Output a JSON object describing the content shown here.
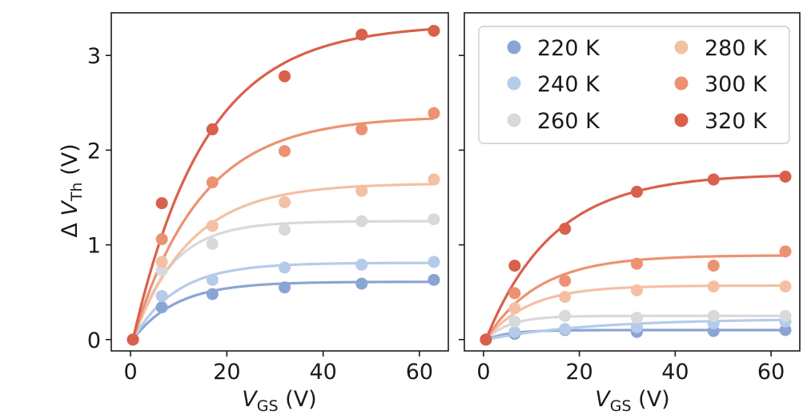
{
  "chart_data": [
    {
      "type": "scatter",
      "panel": "left",
      "xlabel": "V_GS (V)",
      "xlabel_main": "V",
      "xlabel_sub": "GS",
      "xlabel_unit": " (V)",
      "ylabel": "Δ V_Th (V)",
      "ylabel_prefix": "Δ ",
      "ylabel_main": "V",
      "ylabel_sub": "Th",
      "ylabel_unit": " (V)",
      "xlim": [
        -4,
        66
      ],
      "ylim": [
        -0.12,
        3.45
      ],
      "xticks": [
        0,
        20,
        40,
        60
      ],
      "yticks": [
        0,
        1,
        2,
        3
      ],
      "series": [
        {
          "name": "220 K",
          "color": "#8aa5d3",
          "x": [
            0.5,
            6.5,
            17,
            32,
            48,
            63
          ],
          "y": [
            0,
            0.34,
            0.48,
            0.55,
            0.59,
            0.63
          ],
          "fit": {
            "amp": 0.61,
            "tau": 9
          }
        },
        {
          "name": "240 K",
          "color": "#b5cbea",
          "x": [
            0.5,
            6.5,
            17,
            32,
            48,
            63
          ],
          "y": [
            0,
            0.46,
            0.63,
            0.76,
            0.79,
            0.82
          ],
          "fit": {
            "amp": 0.81,
            "tau": 9
          }
        },
        {
          "name": "260 K",
          "color": "#d9d9d9",
          "x": [
            0.5,
            6.5,
            17,
            32,
            48,
            63
          ],
          "y": [
            0,
            0.73,
            1.01,
            1.16,
            1.25,
            1.27
          ],
          "fit": {
            "amp": 1.25,
            "tau": 8
          }
        },
        {
          "name": "280 K",
          "color": "#f3c0a4",
          "x": [
            0.5,
            6.5,
            17,
            32,
            48,
            63
          ],
          "y": [
            0,
            0.82,
            1.2,
            1.45,
            1.57,
            1.69
          ],
          "fit": {
            "amp": 1.65,
            "tau": 12
          }
        },
        {
          "name": "300 K",
          "color": "#ec9272",
          "x": [
            0.5,
            6.5,
            17,
            32,
            48,
            63
          ],
          "y": [
            0,
            1.06,
            1.66,
            1.99,
            2.22,
            2.39
          ],
          "fit": {
            "amp": 2.36,
            "tau": 14
          }
        },
        {
          "name": "320 K",
          "color": "#d9604b",
          "x": [
            0.5,
            6.5,
            17,
            32,
            48,
            63
          ],
          "y": [
            0,
            1.44,
            2.22,
            2.78,
            3.22,
            3.26
          ],
          "fit": {
            "amp": 3.33,
            "tau": 15
          }
        }
      ]
    },
    {
      "type": "scatter",
      "panel": "right",
      "xlabel": "V_GS (V)",
      "xlabel_main": "V",
      "xlabel_sub": "GS",
      "xlabel_unit": " (V)",
      "xlim": [
        -4,
        66
      ],
      "ylim": [
        -0.12,
        3.45
      ],
      "xticks": [
        0,
        20,
        40,
        60
      ],
      "yticks": [
        0,
        1,
        2,
        3
      ],
      "legend": {
        "placement": "top",
        "columns": 2,
        "entries": [
          "220 K",
          "240 K",
          "260 K",
          "280 K",
          "300 K",
          "320 K"
        ]
      },
      "series": [
        {
          "name": "220 K",
          "color": "#8aa5d3",
          "x": [
            0.5,
            6.5,
            17,
            32,
            48,
            63
          ],
          "y": [
            0,
            0.06,
            0.1,
            0.08,
            0.09,
            0.1
          ],
          "fit": {
            "amp": 0.1,
            "tau": 5
          }
        },
        {
          "name": "240 K",
          "color": "#b5cbea",
          "x": [
            0.5,
            6.5,
            17,
            32,
            48,
            63
          ],
          "y": [
            0,
            0.08,
            0.11,
            0.13,
            0.17,
            0.19
          ],
          "fit": {
            "amp": 0.22,
            "tau": 22
          }
        },
        {
          "name": "260 K",
          "color": "#d9d9d9",
          "x": [
            0.5,
            6.5,
            17,
            32,
            48,
            63
          ],
          "y": [
            0,
            0.19,
            0.25,
            0.23,
            0.25,
            0.25
          ],
          "fit": {
            "amp": 0.25,
            "tau": 5
          }
        },
        {
          "name": "280 K",
          "color": "#f3c0a4",
          "x": [
            0.5,
            6.5,
            17,
            32,
            48,
            63
          ],
          "y": [
            0,
            0.33,
            0.45,
            0.52,
            0.56,
            0.56
          ],
          "fit": {
            "amp": 0.57,
            "tau": 9
          }
        },
        {
          "name": "300 K",
          "color": "#ec9272",
          "x": [
            0.5,
            6.5,
            17,
            32,
            48,
            63
          ],
          "y": [
            0,
            0.49,
            0.62,
            0.8,
            0.78,
            0.93
          ],
          "fit": {
            "amp": 0.89,
            "tau": 11
          }
        },
        {
          "name": "320 K",
          "color": "#d9604b",
          "x": [
            0.5,
            6.5,
            17,
            32,
            48,
            63
          ],
          "y": [
            0,
            0.78,
            1.17,
            1.56,
            1.69,
            1.72
          ],
          "fit": {
            "amp": 1.75,
            "tau": 14
          }
        }
      ]
    }
  ]
}
